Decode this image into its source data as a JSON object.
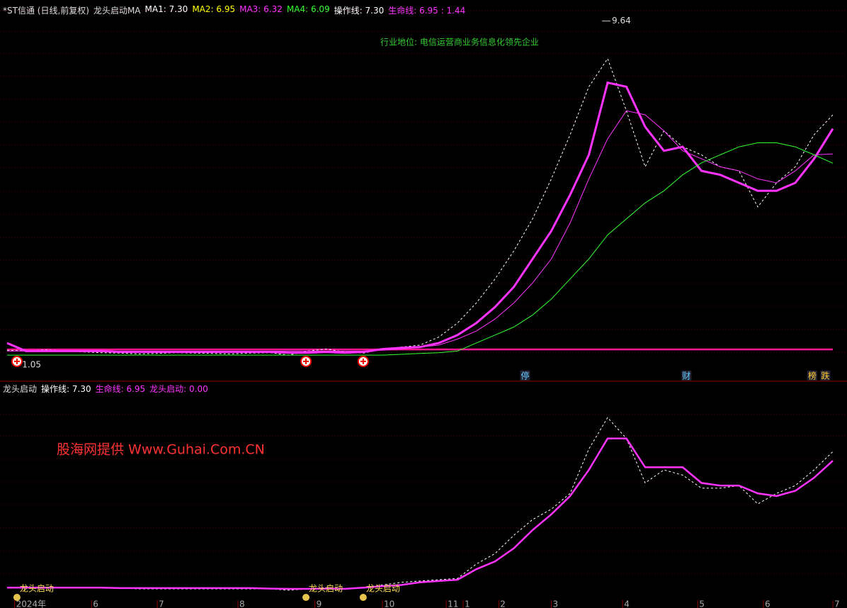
{
  "header": {
    "title": "*ST信通 (日线,前复权)",
    "indicator": "龙头启动MA",
    "items": [
      {
        "label": "MA1: ",
        "value": "7.30",
        "color": "#ffffff"
      },
      {
        "label": "MA2: ",
        "value": "6.95",
        "color": "#ffff00"
      },
      {
        "label": "MA3: ",
        "value": "6.32",
        "color": "#ff33ff"
      },
      {
        "label": "MA4: ",
        "value": "6.09",
        "color": "#33ff33"
      },
      {
        "label": "操作线: ",
        "value": "7.30",
        "color": "#ffffff"
      },
      {
        "label": "生命线: ",
        "value": "6.95 : 1.44",
        "color": "#ff33ff"
      }
    ]
  },
  "lower_header": {
    "title": "龙头启动",
    "items": [
      {
        "label": "操作线: ",
        "value": "7.30",
        "color": "#ffffff"
      },
      {
        "label": "生命线: ",
        "value": "6.95",
        "color": "#ff33ff"
      },
      {
        "label": "龙头启动: ",
        "value": "0.00",
        "color": "#ff33ff"
      }
    ]
  },
  "industry_note": "行业地位: 电信运营商业务信息化领先企业",
  "watermark": "股海网提供 Www.Guhai.Com.CN",
  "chart_data": [
    {
      "type": "line",
      "xlim": [
        0,
        44
      ],
      "ylim": [
        0.7,
        9.9
      ],
      "x": [
        0,
        1,
        2,
        3,
        4,
        5,
        6,
        7,
        8,
        9,
        10,
        11,
        12,
        13,
        14,
        15,
        16,
        17,
        18,
        19,
        20,
        21,
        22,
        23,
        24,
        25,
        26,
        27,
        28,
        29,
        30,
        31,
        32,
        33,
        34,
        35,
        36,
        37,
        38,
        39,
        40,
        41,
        42,
        43,
        44
      ],
      "series": [
        {
          "name": "MA1",
          "color": "#ffffff",
          "dash": true,
          "width": 1,
          "values": [
            1.42,
            1.4,
            1.43,
            1.41,
            1.38,
            1.36,
            1.35,
            1.33,
            1.34,
            1.36,
            1.35,
            1.34,
            1.33,
            1.35,
            1.36,
            1.3,
            1.4,
            1.45,
            1.38,
            1.35,
            1.45,
            1.5,
            1.55,
            1.75,
            2.1,
            2.6,
            3.2,
            3.9,
            4.7,
            5.7,
            6.8,
            8.0,
            8.7,
            7.4,
            6.0,
            6.9,
            6.5,
            6.3,
            6.0,
            5.9,
            5.0,
            5.6,
            6.0,
            6.8,
            7.3
          ]
        },
        {
          "name": "MA2",
          "color": "#ff33ff",
          "dash": false,
          "width": 3,
          "values": [
            1.6,
            1.4,
            1.4,
            1.4,
            1.4,
            1.4,
            1.38,
            1.38,
            1.38,
            1.38,
            1.38,
            1.38,
            1.38,
            1.38,
            1.38,
            1.36,
            1.36,
            1.38,
            1.36,
            1.38,
            1.45,
            1.48,
            1.5,
            1.6,
            1.8,
            2.1,
            2.5,
            3.0,
            3.7,
            4.4,
            5.3,
            6.3,
            8.1,
            8.0,
            7.0,
            6.4,
            6.5,
            5.9,
            5.8,
            5.6,
            5.4,
            5.4,
            5.6,
            6.2,
            6.95
          ]
        },
        {
          "name": "MA3",
          "color": "#ff33ff",
          "dash": false,
          "width": 1,
          "values": [
            1.4,
            1.4,
            1.4,
            1.4,
            1.4,
            1.4,
            1.4,
            1.4,
            1.4,
            1.4,
            1.4,
            1.4,
            1.4,
            1.4,
            1.4,
            1.4,
            1.4,
            1.4,
            1.4,
            1.4,
            1.42,
            1.45,
            1.5,
            1.55,
            1.7,
            1.9,
            2.2,
            2.6,
            3.1,
            3.7,
            4.6,
            5.7,
            6.7,
            7.4,
            7.3,
            6.9,
            6.4,
            6.2,
            6.0,
            5.9,
            5.7,
            5.6,
            5.9,
            6.3,
            6.32
          ]
        },
        {
          "name": "MA4",
          "color": "#33ff33",
          "dash": false,
          "width": 1,
          "values": [
            1.3,
            1.3,
            1.3,
            1.3,
            1.3,
            1.3,
            1.3,
            1.3,
            1.3,
            1.3,
            1.3,
            1.3,
            1.3,
            1.3,
            1.3,
            1.3,
            1.3,
            1.3,
            1.3,
            1.3,
            1.3,
            1.32,
            1.34,
            1.36,
            1.4,
            1.6,
            1.8,
            2.0,
            2.3,
            2.7,
            3.2,
            3.7,
            4.3,
            4.7,
            5.1,
            5.4,
            5.8,
            6.1,
            6.3,
            6.5,
            6.6,
            6.6,
            6.5,
            6.3,
            6.09
          ]
        }
      ],
      "hline": 1.44,
      "hline_color": "#ff1493",
      "high": {
        "x": 31.7,
        "y": 9.64
      },
      "low": {
        "x": 0.5,
        "y": 1.05
      },
      "events": [
        {
          "x": 27.6,
          "label": "停"
        },
        {
          "x": 36.2,
          "label": "财"
        },
        {
          "x": 42.9,
          "label": "榜"
        },
        {
          "x": 43.6,
          "label": "跌"
        }
      ]
    },
    {
      "type": "line",
      "xlim": [
        0,
        44
      ],
      "ylim": [
        1.4,
        9.8
      ],
      "x": [
        0,
        1,
        2,
        3,
        4,
        5,
        6,
        7,
        8,
        9,
        10,
        11,
        12,
        13,
        14,
        15,
        16,
        17,
        18,
        19,
        20,
        21,
        22,
        23,
        24,
        25,
        26,
        27,
        28,
        29,
        30,
        31,
        32,
        33,
        34,
        35,
        36,
        37,
        38,
        39,
        40,
        41,
        42,
        43,
        44
      ],
      "series": [
        {
          "name": "操作线",
          "color": "#ffffff",
          "dash": true,
          "width": 1,
          "values": [
            2.1,
            2.1,
            2.1,
            2.1,
            2.08,
            2.08,
            2.08,
            2.05,
            2.05,
            2.05,
            2.05,
            2.05,
            2.05,
            2.05,
            2.05,
            2.0,
            2.05,
            2.1,
            2.05,
            2.1,
            2.2,
            2.3,
            2.35,
            2.4,
            2.45,
            3.0,
            3.4,
            4.1,
            4.7,
            5.1,
            5.7,
            7.4,
            8.6,
            7.8,
            6.1,
            6.6,
            6.4,
            5.9,
            5.9,
            6.0,
            5.3,
            5.7,
            6.0,
            6.6,
            7.3
          ]
        },
        {
          "name": "生命线",
          "color": "#ff33ff",
          "dash": false,
          "width": 2.5,
          "values": [
            2.1,
            2.1,
            2.1,
            2.1,
            2.1,
            2.1,
            2.08,
            2.08,
            2.08,
            2.08,
            2.08,
            2.08,
            2.08,
            2.08,
            2.06,
            2.05,
            2.05,
            2.06,
            2.05,
            2.1,
            2.15,
            2.2,
            2.3,
            2.35,
            2.4,
            2.8,
            3.1,
            3.6,
            4.3,
            4.9,
            5.6,
            6.6,
            7.8,
            7.8,
            6.7,
            6.7,
            6.7,
            6.1,
            6.0,
            6.0,
            5.7,
            5.6,
            5.8,
            6.3,
            6.95
          ]
        }
      ],
      "xticks": [
        {
          "value": 0.4,
          "label": "2024年"
        },
        {
          "value": 4.5,
          "label": "6"
        },
        {
          "value": 8,
          "label": "7"
        },
        {
          "value": 12.3,
          "label": "8"
        },
        {
          "value": 16.4,
          "label": "9"
        },
        {
          "value": 20,
          "label": "10"
        },
        {
          "value": 23.4,
          "label": "11"
        },
        {
          "value": 24.3,
          "label": "1"
        },
        {
          "value": 26.2,
          "label": "2"
        },
        {
          "value": 29,
          "label": "3"
        },
        {
          "value": 32.8,
          "label": "4"
        },
        {
          "value": 36.8,
          "label": "5"
        },
        {
          "value": 40.3,
          "label": "6"
        },
        {
          "value": 44,
          "label": "7"
        }
      ],
      "signals": [
        {
          "x": 0.45,
          "label": "龙头启动"
        },
        {
          "x": 15.85,
          "label": "龙头启动"
        },
        {
          "x": 18.9,
          "label": "龙头启动"
        }
      ]
    }
  ]
}
